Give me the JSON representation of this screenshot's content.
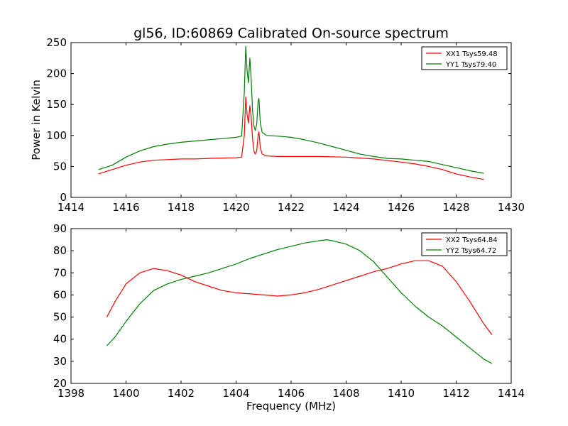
{
  "figure_title": "gl56, ID:60869 Calibrated On-source spectrum",
  "chart_data": [
    {
      "type": "line",
      "title": "gl56, ID:60869 Calibrated On-source spectrum",
      "xlabel": "",
      "ylabel": "Power in Kelvin",
      "xlim": [
        1414,
        1430
      ],
      "ylim": [
        0,
        250
      ],
      "xticks": [
        1414,
        1416,
        1418,
        1420,
        1422,
        1424,
        1426,
        1428,
        1430
      ],
      "yticks": [
        0,
        50,
        100,
        150,
        200,
        250
      ],
      "legend_position": "top-right",
      "grid": false,
      "series": [
        {
          "name": "XX1 Tsys59.48",
          "color": "#ff0000",
          "points": [
            [
              1415.0,
              38
            ],
            [
              1415.5,
              45
            ],
            [
              1416.0,
              52
            ],
            [
              1416.5,
              57
            ],
            [
              1417.0,
              60
            ],
            [
              1417.5,
              61
            ],
            [
              1418.0,
              62
            ],
            [
              1418.5,
              62
            ],
            [
              1419.0,
              63
            ],
            [
              1419.5,
              63.5
            ],
            [
              1420.0,
              64
            ],
            [
              1420.2,
              65
            ],
            [
              1420.3,
              100
            ],
            [
              1420.35,
              162
            ],
            [
              1420.4,
              135
            ],
            [
              1420.45,
              120
            ],
            [
              1420.5,
              148
            ],
            [
              1420.55,
              130
            ],
            [
              1420.6,
              95
            ],
            [
              1420.65,
              75
            ],
            [
              1420.7,
              70
            ],
            [
              1420.75,
              75
            ],
            [
              1420.8,
              100
            ],
            [
              1420.83,
              106
            ],
            [
              1420.88,
              80
            ],
            [
              1420.95,
              70
            ],
            [
              1421.1,
              67
            ],
            [
              1421.5,
              66
            ],
            [
              1422.0,
              66
            ],
            [
              1423.0,
              66
            ],
            [
              1424.0,
              65
            ],
            [
              1425.0,
              62
            ],
            [
              1426.0,
              57
            ],
            [
              1426.5,
              54
            ],
            [
              1427.0,
              50
            ],
            [
              1427.5,
              45
            ],
            [
              1428.0,
              38
            ],
            [
              1428.5,
              33
            ],
            [
              1429.0,
              29
            ]
          ]
        },
        {
          "name": "YY1 Tsys79.40",
          "color": "#008000",
          "points": [
            [
              1415.0,
              45
            ],
            [
              1415.5,
              52
            ],
            [
              1416.0,
              65
            ],
            [
              1416.5,
              75
            ],
            [
              1417.0,
              82
            ],
            [
              1417.5,
              86
            ],
            [
              1418.0,
              89
            ],
            [
              1418.5,
              91
            ],
            [
              1419.0,
              93
            ],
            [
              1419.5,
              95
            ],
            [
              1420.0,
              97
            ],
            [
              1420.2,
              99
            ],
            [
              1420.3,
              170
            ],
            [
              1420.35,
              244
            ],
            [
              1420.4,
              205
            ],
            [
              1420.45,
              185
            ],
            [
              1420.5,
              225
            ],
            [
              1420.55,
              190
            ],
            [
              1420.6,
              140
            ],
            [
              1420.65,
              115
            ],
            [
              1420.7,
              108
            ],
            [
              1420.75,
              118
            ],
            [
              1420.8,
              155
            ],
            [
              1420.83,
              160
            ],
            [
              1420.88,
              120
            ],
            [
              1420.95,
              105
            ],
            [
              1421.1,
              100
            ],
            [
              1421.5,
              99
            ],
            [
              1422.0,
              97
            ],
            [
              1422.5,
              93
            ],
            [
              1423.0,
              88
            ],
            [
              1423.5,
              82
            ],
            [
              1424.0,
              76
            ],
            [
              1424.5,
              70
            ],
            [
              1425.0,
              66
            ],
            [
              1425.5,
              63
            ],
            [
              1426.0,
              62
            ],
            [
              1426.5,
              60
            ],
            [
              1427.0,
              58
            ],
            [
              1427.5,
              53
            ],
            [
              1428.0,
              48
            ],
            [
              1428.5,
              43
            ],
            [
              1429.0,
              39
            ]
          ]
        }
      ]
    },
    {
      "type": "line",
      "title": "",
      "xlabel": "Frequency (MHz)",
      "ylabel": "",
      "xlim": [
        1398,
        1414
      ],
      "ylim": [
        20,
        90
      ],
      "xticks": [
        1398,
        1400,
        1402,
        1404,
        1406,
        1408,
        1410,
        1412,
        1414
      ],
      "yticks": [
        20,
        30,
        40,
        50,
        60,
        70,
        80,
        90
      ],
      "legend_position": "top-right",
      "grid": false,
      "series": [
        {
          "name": "XX2 Tsys64.84",
          "color": "#ff0000",
          "points": [
            [
              1399.3,
              50
            ],
            [
              1399.6,
              57
            ],
            [
              1400.0,
              65
            ],
            [
              1400.5,
              70
            ],
            [
              1401.0,
              72
            ],
            [
              1401.5,
              71
            ],
            [
              1402.0,
              69
            ],
            [
              1402.5,
              66
            ],
            [
              1403.0,
              64
            ],
            [
              1403.5,
              62
            ],
            [
              1404.0,
              61
            ],
            [
              1404.5,
              60.5
            ],
            [
              1405.0,
              60
            ],
            [
              1405.5,
              59.5
            ],
            [
              1406.0,
              60
            ],
            [
              1406.5,
              61
            ],
            [
              1407.0,
              62.5
            ],
            [
              1407.5,
              64.5
            ],
            [
              1408.0,
              66.5
            ],
            [
              1408.5,
              68.5
            ],
            [
              1409.0,
              70.5
            ],
            [
              1409.5,
              72
            ],
            [
              1410.0,
              74
            ],
            [
              1410.5,
              75.5
            ],
            [
              1411.0,
              75.5
            ],
            [
              1411.5,
              73
            ],
            [
              1412.0,
              66
            ],
            [
              1412.5,
              57
            ],
            [
              1413.0,
              47
            ],
            [
              1413.3,
              42
            ]
          ]
        },
        {
          "name": "YY2 Tsys64.72",
          "color": "#008000",
          "points": [
            [
              1399.3,
              37
            ],
            [
              1399.6,
              41
            ],
            [
              1400.0,
              48
            ],
            [
              1400.5,
              56
            ],
            [
              1401.0,
              62
            ],
            [
              1401.5,
              65
            ],
            [
              1402.0,
              67
            ],
            [
              1402.5,
              68.5
            ],
            [
              1403.0,
              70
            ],
            [
              1403.5,
              72
            ],
            [
              1404.0,
              74
            ],
            [
              1404.5,
              76.5
            ],
            [
              1405.0,
              78.5
            ],
            [
              1405.5,
              80.5
            ],
            [
              1406.0,
              82
            ],
            [
              1406.5,
              83.5
            ],
            [
              1407.0,
              84.5
            ],
            [
              1407.3,
              85
            ],
            [
              1407.5,
              84.5
            ],
            [
              1408.0,
              83
            ],
            [
              1408.5,
              80
            ],
            [
              1409.0,
              75
            ],
            [
              1409.5,
              68
            ],
            [
              1410.0,
              61
            ],
            [
              1410.5,
              55
            ],
            [
              1411.0,
              50
            ],
            [
              1411.5,
              46
            ],
            [
              1412.0,
              41
            ],
            [
              1412.5,
              36
            ],
            [
              1413.0,
              31
            ],
            [
              1413.3,
              29
            ]
          ]
        }
      ]
    }
  ]
}
